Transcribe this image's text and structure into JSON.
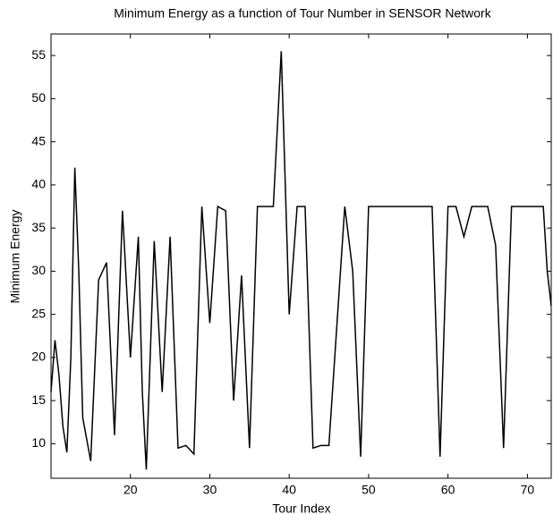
{
  "chart_data": {
    "type": "line",
    "title": "Minimum Energy as a function of Tour Number in SENSOR Network",
    "x_label": "Tour Index",
    "y_label": "Minimum Energy",
    "x": [
      10,
      10.5,
      11,
      11.5,
      12,
      12.5,
      13,
      13.5,
      14,
      15,
      16,
      17,
      18,
      19,
      20,
      21,
      21.5,
      22,
      23,
      24,
      25,
      26,
      27,
      28,
      29,
      30,
      31,
      32,
      33,
      34,
      35,
      36,
      38,
      39,
      40,
      41,
      42,
      43,
      44,
      45,
      47,
      48,
      49,
      50,
      58,
      59,
      60,
      61,
      62,
      63,
      65,
      66,
      67,
      68,
      72,
      72.5,
      73
    ],
    "series": [
      {
        "name": "Minimum Energy",
        "color": "#000000",
        "values": [
          16,
          22,
          18,
          12,
          9,
          20,
          42,
          30,
          13,
          8,
          29,
          31,
          11,
          37,
          20,
          34,
          16,
          7,
          33.5,
          16,
          34,
          9.5,
          9.8,
          8.8,
          37.5,
          24,
          37.5,
          37,
          15,
          29.5,
          9.5,
          37.5,
          37.5,
          55.5,
          25,
          37.5,
          37.5,
          9.5,
          9.8,
          9.8,
          37.5,
          30,
          8.5,
          37.5,
          37.5,
          8.5,
          37.5,
          37.5,
          34,
          37.5,
          37.5,
          33,
          9.5,
          37.5,
          37.5,
          30,
          26
        ]
      }
    ],
    "xlim": [
      10,
      73
    ],
    "ylim": [
      6,
      57.5
    ],
    "xticks": [
      20,
      30,
      40,
      50,
      60,
      70
    ],
    "yticks": [
      10,
      15,
      20,
      25,
      30,
      35,
      40,
      45,
      50,
      55
    ]
  }
}
